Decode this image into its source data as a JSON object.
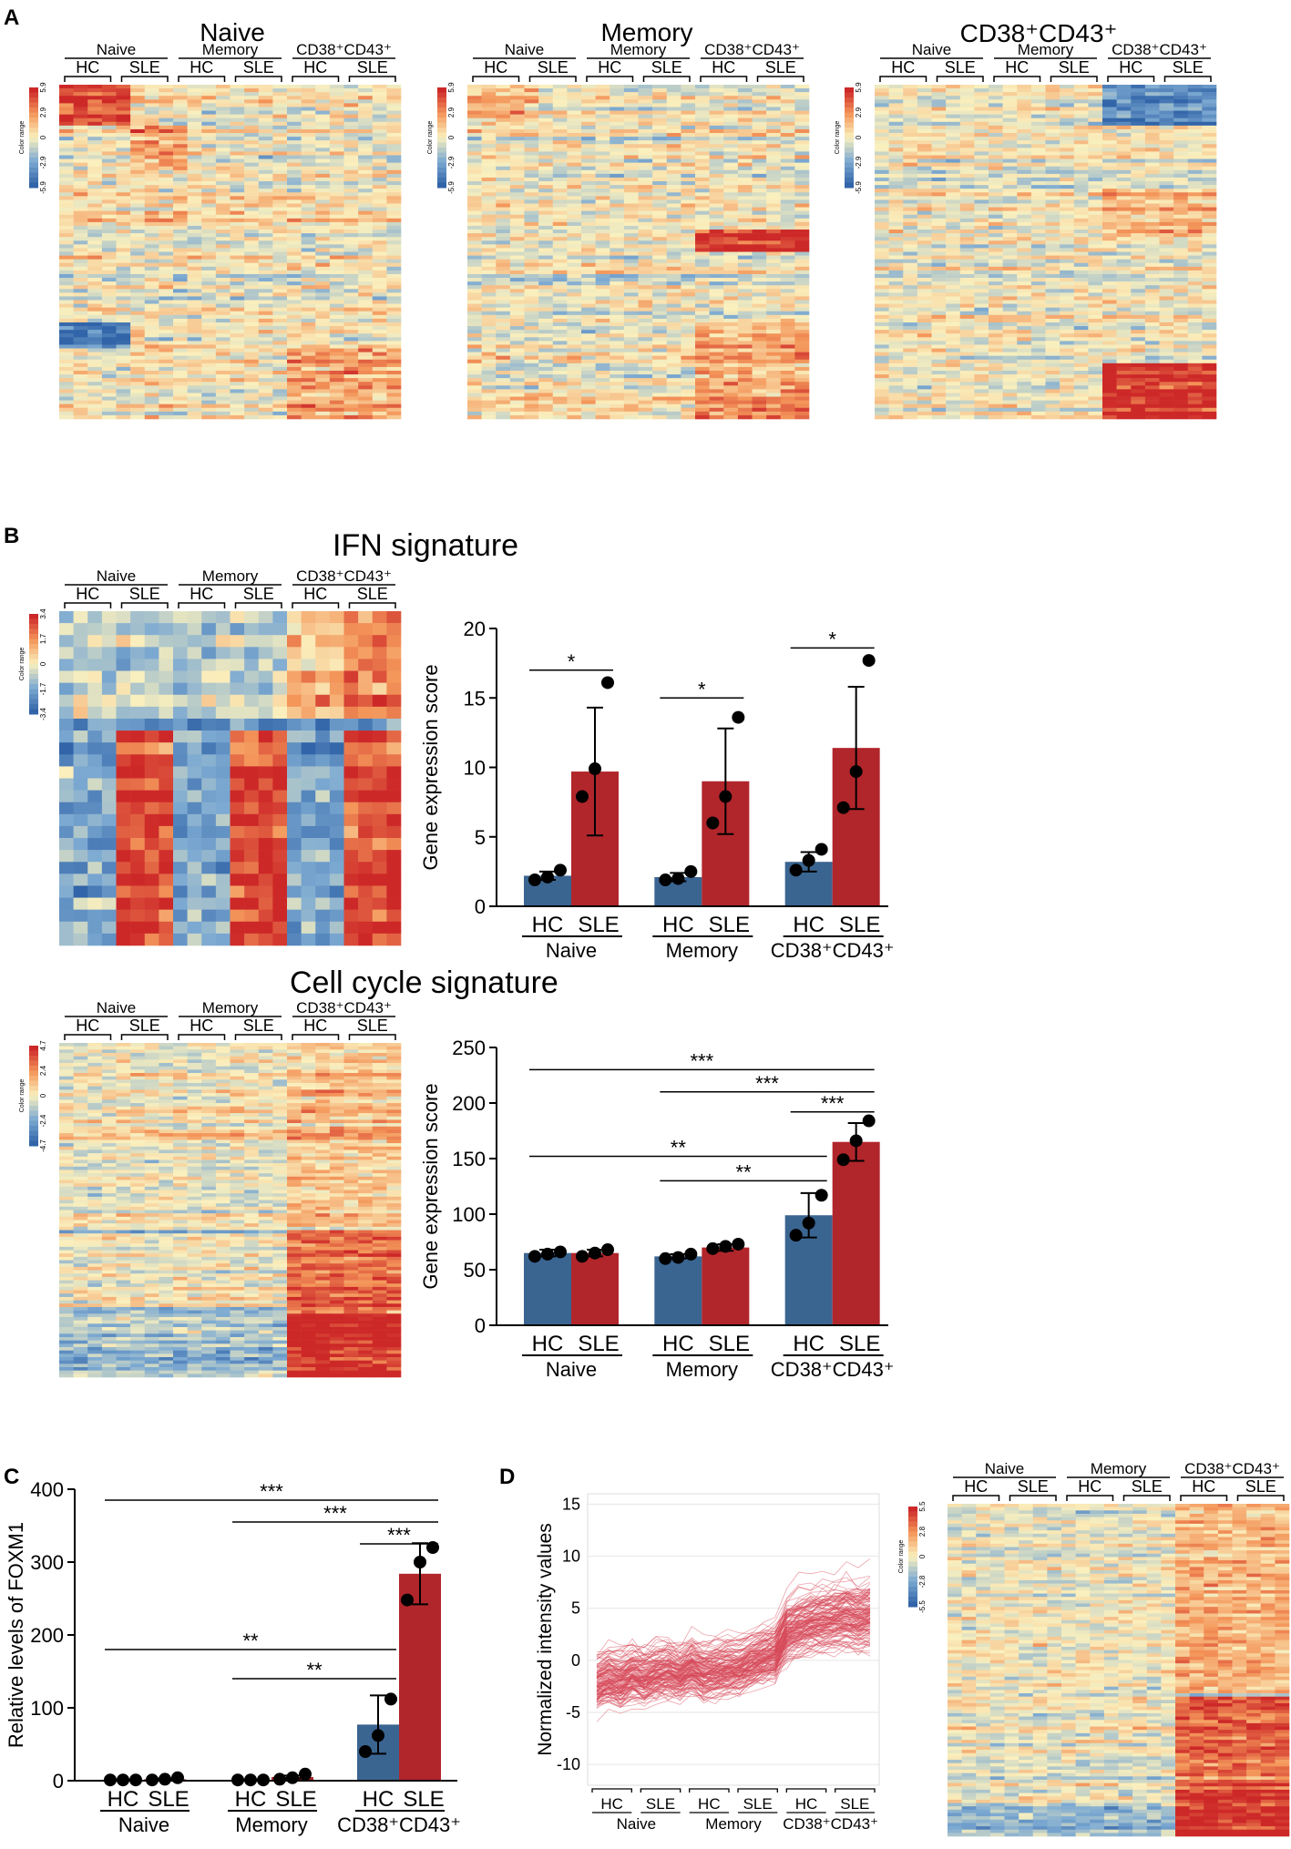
{
  "panels": {
    "a": "A",
    "b": "B",
    "c": "C",
    "d": "D"
  },
  "heatmaps_a": [
    {
      "title": "Naive",
      "scale": [
        "5.9",
        "2.9",
        "0",
        "-2.9",
        "-5.9"
      ]
    },
    {
      "title": "Memory",
      "scale": [
        "5.9",
        "2.9",
        "0",
        "-2.9",
        "-5.9"
      ]
    },
    {
      "title": "CD38⁺CD43⁺",
      "scale": [
        "5.9",
        "2.9",
        "0",
        "-2.9",
        "-5.9"
      ]
    }
  ],
  "heatmap_header": {
    "groups": [
      "Naive",
      "Memory",
      "CD38⁺CD43⁺"
    ],
    "sub": [
      "HC",
      "SLE"
    ],
    "color_range": "Color range"
  },
  "section_titles": {
    "ifn": "IFN signature",
    "cell_cycle": "Cell cycle signature"
  },
  "heatmap_ifn_scale": [
    "3.4",
    "1.7",
    "0",
    "-1.7",
    "-3.4"
  ],
  "heatmap_cc_scale": [
    "4.7",
    "2.4",
    "0",
    "-2.4",
    "-4.7"
  ],
  "heatmap_d_scale": [
    "5.5",
    "2.8",
    "0",
    "-2.8",
    "-5.5"
  ],
  "colors": {
    "hc": "#3b6591",
    "sle": "#b1262b",
    "line": "#d84a5a"
  },
  "chart_data": [
    {
      "type": "bar",
      "id": "ifn",
      "ylabel": "Gene expression score",
      "ylim": [
        0,
        20
      ],
      "yticks": [
        0,
        5,
        10,
        15,
        20
      ],
      "categories": [
        "Naive",
        "Memory",
        "CD38⁺CD43⁺"
      ],
      "sub": [
        "HC",
        "SLE"
      ],
      "series": [
        {
          "name": "HC",
          "values": [
            2.2,
            2.1,
            3.2
          ],
          "err": [
            0.3,
            0.3,
            0.7
          ],
          "points": [
            [
              1.9,
              2.1,
              2.6
            ],
            [
              1.9,
              2.0,
              2.5
            ],
            [
              2.6,
              3.3,
              4.1
            ]
          ]
        },
        {
          "name": "SLE",
          "values": [
            9.7,
            9.0,
            11.4
          ],
          "err": [
            4.6,
            3.8,
            4.4
          ],
          "points": [
            [
              7.9,
              9.9,
              16.1
            ],
            [
              6.0,
              7.9,
              13.6
            ],
            [
              7.1,
              9.7,
              17.7
            ]
          ]
        }
      ],
      "sig": [
        {
          "label": "*",
          "from": [
            0,
            0
          ],
          "to": [
            0,
            1
          ],
          "y": 17
        },
        {
          "label": "*",
          "from": [
            1,
            0
          ],
          "to": [
            1,
            1
          ],
          "y": 15
        },
        {
          "label": "*",
          "from": [
            2,
            0
          ],
          "to": [
            2,
            1
          ],
          "y": 18.6
        }
      ]
    },
    {
      "type": "bar",
      "id": "cc",
      "ylabel": "Gene expression score",
      "ylim": [
        0,
        250
      ],
      "yticks": [
        0,
        50,
        100,
        150,
        200,
        250
      ],
      "categories": [
        "Naive",
        "Memory",
        "CD38⁺CD43⁺"
      ],
      "sub": [
        "HC",
        "SLE"
      ],
      "series": [
        {
          "name": "HC",
          "values": [
            65,
            62,
            99
          ],
          "err": [
            3,
            2,
            20
          ],
          "points": [
            [
              62,
              64,
              66
            ],
            [
              60,
              61,
              64
            ],
            [
              81,
              92,
              117
            ]
          ]
        },
        {
          "name": "SLE",
          "values": [
            65,
            70,
            165
          ],
          "err": [
            3,
            3,
            17
          ],
          "points": [
            [
              62,
              65,
              68
            ],
            [
              69,
              71,
              73
            ],
            [
              149,
              166,
              184
            ]
          ]
        }
      ],
      "sig": [
        {
          "label": "***",
          "from": [
            0,
            0
          ],
          "to": [
            2,
            1
          ],
          "y": 230
        },
        {
          "label": "***",
          "from": [
            1,
            0
          ],
          "to": [
            2,
            1
          ],
          "y": 210
        },
        {
          "label": "***",
          "from": [
            2,
            0
          ],
          "to": [
            2,
            1
          ],
          "y": 192
        },
        {
          "label": "**",
          "from": [
            0,
            0
          ],
          "to": [
            2,
            0
          ],
          "y": 152
        },
        {
          "label": "**",
          "from": [
            1,
            0
          ],
          "to": [
            2,
            0
          ],
          "y": 130
        }
      ]
    },
    {
      "type": "bar",
      "id": "foxm1",
      "ylabel": "Relative levels of FOXM1",
      "ylim": [
        0,
        400
      ],
      "yticks": [
        0,
        100,
        200,
        300,
        400
      ],
      "categories": [
        "Naive",
        "Memory",
        "CD38⁺CD43⁺"
      ],
      "sub": [
        "HC",
        "SLE"
      ],
      "series": [
        {
          "name": "HC",
          "values": [
            1,
            1,
            77
          ],
          "err": [
            0.5,
            0.5,
            40
          ],
          "points": [
            [
              1,
              1,
              1
            ],
            [
              1,
              1,
              1
            ],
            [
              40,
              62,
              112
            ]
          ]
        },
        {
          "name": "SLE",
          "values": [
            2,
            5,
            284
          ],
          "err": [
            1,
            2,
            42
          ],
          "points": [
            [
              1,
              2,
              4
            ],
            [
              2,
              4,
              9
            ],
            [
              248,
              300,
              320
            ]
          ]
        }
      ],
      "sig": [
        {
          "label": "***",
          "from": [
            0,
            0
          ],
          "to": [
            2,
            1
          ],
          "y": 385
        },
        {
          "label": "***",
          "from": [
            1,
            0
          ],
          "to": [
            2,
            1
          ],
          "y": 355
        },
        {
          "label": "***",
          "from": [
            2,
            0
          ],
          "to": [
            2,
            1
          ],
          "y": 325
        },
        {
          "label": "**",
          "from": [
            0,
            0
          ],
          "to": [
            2,
            0
          ],
          "y": 180
        },
        {
          "label": "**",
          "from": [
            1,
            0
          ],
          "to": [
            2,
            0
          ],
          "y": 140
        }
      ]
    },
    {
      "type": "line",
      "id": "profile",
      "ylabel": "Normalized intensity values",
      "ylim": [
        -12,
        16
      ],
      "yticks": [
        -10,
        -5,
        0,
        5,
        10,
        15
      ],
      "x_groups": [
        "Naive",
        "Memory",
        "CD38⁺CD43⁺"
      ],
      "sub": [
        "HC",
        "SLE"
      ],
      "samples": 24,
      "mean_profile": [
        -2,
        -1.5,
        -1.8,
        -1.2,
        -1.5,
        -1,
        -0.8,
        -1.2,
        -0.5,
        -1,
        -0.8,
        -0.6,
        -0.5,
        0,
        0.5,
        0.8,
        3,
        3.5,
        3.8,
        4,
        4.2,
        4.5,
        4.3,
        4.5
      ]
    }
  ]
}
